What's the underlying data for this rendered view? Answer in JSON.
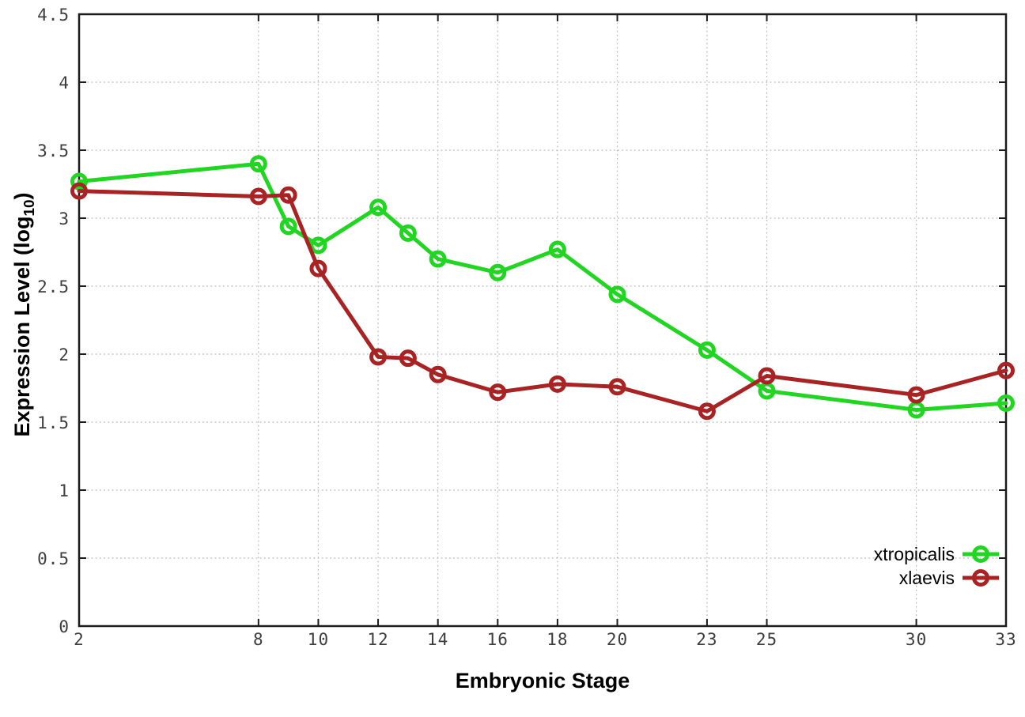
{
  "figure": {
    "background": "#ffffff",
    "border_color": "#1c1c1c",
    "grid_color": "#b8b8b8",
    "tick_label_color": "#3d3d3d",
    "axis_title_color": "#000000"
  },
  "chart_data": {
    "type": "line",
    "title": "",
    "xlabel": "Embryonic Stage",
    "ylabel": "Expression Level (log10)",
    "ylabel_main": "Expression Level (log",
    "ylabel_sub": "10",
    "ylabel_close": ")",
    "xlim": [
      2,
      33
    ],
    "ylim": [
      0,
      4.5
    ],
    "x_ticks": [
      2,
      8,
      10,
      12,
      14,
      16,
      18,
      20,
      23,
      25,
      30,
      33
    ],
    "y_ticks": [
      0,
      0.5,
      1,
      1.5,
      2,
      2.5,
      3,
      3.5,
      4,
      4.5
    ],
    "grid": true,
    "marker": "open-circle",
    "legend_position": "inside-bottom-right",
    "x": [
      2,
      8,
      9,
      10,
      12,
      13,
      14,
      16,
      18,
      20,
      23,
      25,
      30,
      33
    ],
    "series": [
      {
        "name": "xtropicalis",
        "color": "#23d523",
        "values": [
          3.27,
          3.4,
          2.94,
          2.8,
          3.08,
          2.89,
          2.7,
          2.6,
          2.77,
          2.44,
          2.03,
          1.73,
          1.59,
          1.64
        ]
      },
      {
        "name": "xlaevis",
        "color": "#a82424",
        "values": [
          3.2,
          3.16,
          3.17,
          2.63,
          1.98,
          1.97,
          1.85,
          1.72,
          1.78,
          1.76,
          1.58,
          1.84,
          1.7,
          1.88
        ]
      }
    ]
  }
}
